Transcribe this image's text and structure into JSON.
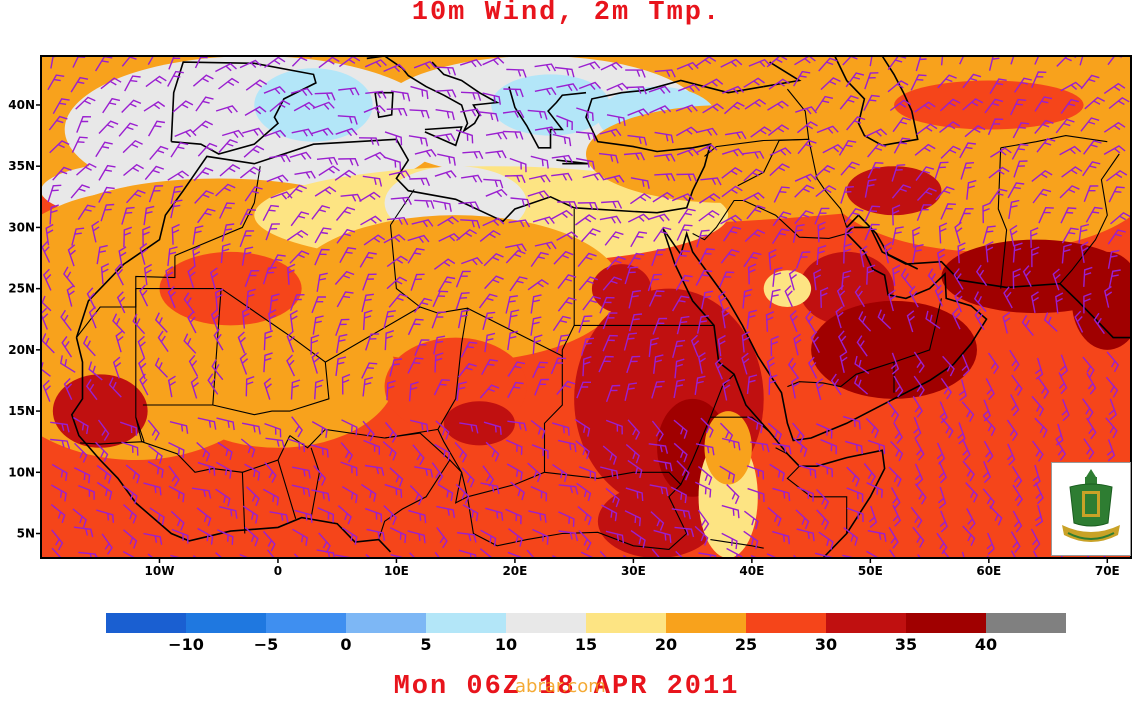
{
  "title": "10m Wind, 2m Tmp.",
  "footer": "Mon 06Z 18 APR 2011",
  "watermark": "abrar.com",
  "map": {
    "lon_range": [
      -20,
      72
    ],
    "lat_range": [
      3,
      44
    ],
    "lat_labels": [
      "40N",
      "35N",
      "30N",
      "25N",
      "20N",
      "15N",
      "10N",
      "5N"
    ],
    "lat_values": [
      40,
      35,
      30,
      25,
      20,
      15,
      10,
      5
    ],
    "lon_labels": [
      "10W",
      "0",
      "10E",
      "20E",
      "30E",
      "40E",
      "50E",
      "60E",
      "70E"
    ],
    "lon_values": [
      -10,
      0,
      10,
      20,
      30,
      40,
      50,
      60,
      70
    ],
    "field": "2m temperature (°C) with 10m wind barbs"
  },
  "colorbar": {
    "colors": [
      "#1a5fd1",
      "#1f78e0",
      "#3f8ff0",
      "#7db7f5",
      "#b3e6f8",
      "#e8e8e8",
      "#fde483",
      "#f8a21c",
      "#f5451a",
      "#c01010",
      "#a00000",
      "#808080"
    ],
    "labels": [
      "−10",
      "−5",
      "0",
      "5",
      "10",
      "15",
      "20",
      "25",
      "30",
      "35",
      "40"
    ]
  },
  "logo": {
    "icon": "university-seal-icon"
  }
}
